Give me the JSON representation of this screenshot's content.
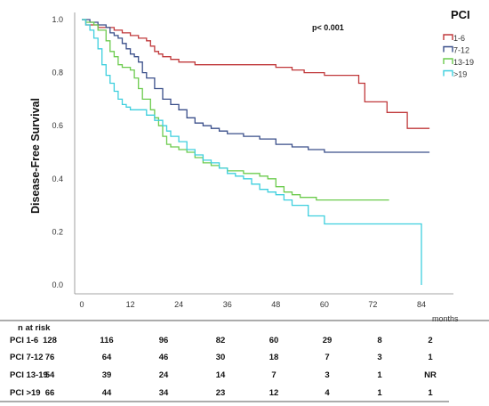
{
  "chart_data": {
    "type": "line",
    "subtype": "kaplan-meier",
    "ylabel": "Disease-Free Survival",
    "xlabel": "months",
    "annotation": "p< 0.001",
    "xlim": [
      0,
      84
    ],
    "ylim": [
      0,
      1.0
    ],
    "x_ticks": [
      "0",
      "12",
      "24",
      "36",
      "48",
      "60",
      "72",
      "84"
    ],
    "y_ticks": [
      "0.0",
      "0.2",
      "0.4",
      "0.6",
      "0.8",
      "1.0"
    ],
    "legend_title": "PCI",
    "legend_position": "top-right",
    "series": [
      {
        "name": "1-6",
        "color": "#c0393b",
        "steps": [
          [
            0,
            1.0
          ],
          [
            1,
            0.98
          ],
          [
            4,
            0.97
          ],
          [
            8,
            0.96
          ],
          [
            10,
            0.95
          ],
          [
            12,
            0.94
          ],
          [
            14,
            0.93
          ],
          [
            16,
            0.92
          ],
          [
            17,
            0.9
          ],
          [
            18,
            0.88
          ],
          [
            19,
            0.87
          ],
          [
            20,
            0.86
          ],
          [
            22,
            0.85
          ],
          [
            24,
            0.84
          ],
          [
            28,
            0.83
          ],
          [
            48,
            0.82
          ],
          [
            52,
            0.81
          ],
          [
            55,
            0.8
          ],
          [
            60,
            0.79
          ],
          [
            68,
            0.79
          ],
          [
            68.5,
            0.76
          ],
          [
            70,
            0.69
          ],
          [
            75,
            0.69
          ],
          [
            75.5,
            0.65
          ],
          [
            80,
            0.65
          ],
          [
            80.5,
            0.59
          ],
          [
            86,
            0.59
          ]
        ]
      },
      {
        "name": "7-12",
        "color": "#3a4f8a",
        "steps": [
          [
            0,
            1.0
          ],
          [
            2,
            0.99
          ],
          [
            4,
            0.98
          ],
          [
            6,
            0.97
          ],
          [
            7,
            0.95
          ],
          [
            8,
            0.94
          ],
          [
            9,
            0.93
          ],
          [
            10,
            0.91
          ],
          [
            11,
            0.89
          ],
          [
            12,
            0.87
          ],
          [
            13,
            0.86
          ],
          [
            14,
            0.84
          ],
          [
            15,
            0.8
          ],
          [
            16,
            0.78
          ],
          [
            18,
            0.74
          ],
          [
            20,
            0.7
          ],
          [
            22,
            0.68
          ],
          [
            24,
            0.66
          ],
          [
            26,
            0.63
          ],
          [
            28,
            0.61
          ],
          [
            30,
            0.6
          ],
          [
            32,
            0.59
          ],
          [
            34,
            0.58
          ],
          [
            36,
            0.57
          ],
          [
            40,
            0.56
          ],
          [
            44,
            0.55
          ],
          [
            48,
            0.53
          ],
          [
            52,
            0.52
          ],
          [
            56,
            0.51
          ],
          [
            60,
            0.5
          ],
          [
            86,
            0.5
          ]
        ]
      },
      {
        "name": "13-19",
        "color": "#6ccb4e",
        "steps": [
          [
            0,
            1.0
          ],
          [
            1,
            0.99
          ],
          [
            3,
            0.98
          ],
          [
            4,
            0.96
          ],
          [
            6,
            0.92
          ],
          [
            7,
            0.88
          ],
          [
            8,
            0.86
          ],
          [
            9,
            0.83
          ],
          [
            10,
            0.82
          ],
          [
            12,
            0.81
          ],
          [
            13,
            0.78
          ],
          [
            14,
            0.74
          ],
          [
            15,
            0.7
          ],
          [
            17,
            0.66
          ],
          [
            18,
            0.63
          ],
          [
            19,
            0.6
          ],
          [
            20,
            0.56
          ],
          [
            21,
            0.53
          ],
          [
            22,
            0.52
          ],
          [
            24,
            0.51
          ],
          [
            26,
            0.5
          ],
          [
            28,
            0.48
          ],
          [
            30,
            0.46
          ],
          [
            32,
            0.45
          ],
          [
            34,
            0.44
          ],
          [
            36,
            0.43
          ],
          [
            40,
            0.42
          ],
          [
            44,
            0.41
          ],
          [
            46,
            0.4
          ],
          [
            48,
            0.37
          ],
          [
            50,
            0.35
          ],
          [
            52,
            0.34
          ],
          [
            54,
            0.33
          ],
          [
            58,
            0.32
          ],
          [
            76,
            0.32
          ]
        ]
      },
      {
        "name": ">19",
        "color": "#3ecfde",
        "steps": [
          [
            0,
            1.0
          ],
          [
            1,
            0.98
          ],
          [
            2,
            0.96
          ],
          [
            3,
            0.93
          ],
          [
            4,
            0.89
          ],
          [
            5,
            0.83
          ],
          [
            6,
            0.79
          ],
          [
            7,
            0.76
          ],
          [
            8,
            0.73
          ],
          [
            9,
            0.7
          ],
          [
            10,
            0.68
          ],
          [
            11,
            0.67
          ],
          [
            12,
            0.66
          ],
          [
            16,
            0.64
          ],
          [
            18,
            0.62
          ],
          [
            20,
            0.6
          ],
          [
            21,
            0.58
          ],
          [
            22,
            0.56
          ],
          [
            24,
            0.54
          ],
          [
            26,
            0.51
          ],
          [
            28,
            0.49
          ],
          [
            30,
            0.47
          ],
          [
            32,
            0.46
          ],
          [
            34,
            0.44
          ],
          [
            36,
            0.42
          ],
          [
            38,
            0.41
          ],
          [
            40,
            0.4
          ],
          [
            42,
            0.38
          ],
          [
            44,
            0.36
          ],
          [
            46,
            0.35
          ],
          [
            48,
            0.34
          ],
          [
            50,
            0.32
          ],
          [
            52,
            0.3
          ],
          [
            56,
            0.26
          ],
          [
            60,
            0.23
          ],
          [
            84,
            0.23
          ],
          [
            84,
            0.0
          ]
        ]
      }
    ]
  },
  "risk_table": {
    "title": "n at risk",
    "x_unit": "months",
    "rows": [
      {
        "label": "PCI 1-6",
        "values": [
          "128",
          "116",
          "96",
          "82",
          "60",
          "29",
          "8",
          "2"
        ]
      },
      {
        "label": "PCI 7-12",
        "values": [
          "76",
          "64",
          "46",
          "30",
          "18",
          "7",
          "3",
          "1"
        ]
      },
      {
        "label": "PCI 13-19",
        "values": [
          "54",
          "39",
          "24",
          "14",
          "7",
          "3",
          "1",
          "NR"
        ]
      },
      {
        "label": "PCI >19",
        "values": [
          "66",
          "44",
          "34",
          "23",
          "12",
          "4",
          "1",
          "1"
        ]
      }
    ]
  }
}
